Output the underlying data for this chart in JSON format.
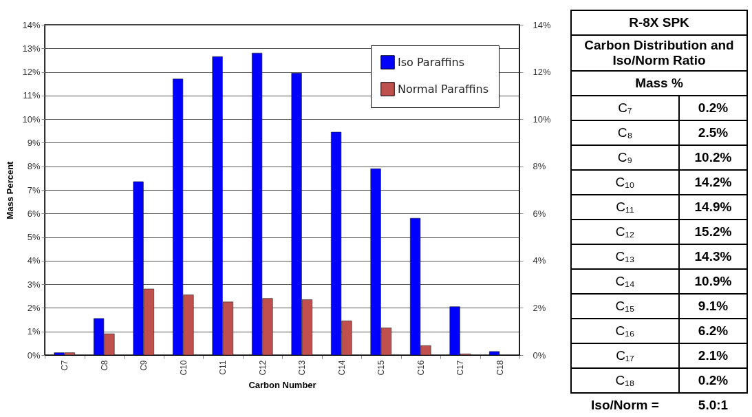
{
  "chart_data": [
    {
      "type": "bar",
      "xlabel": "Carbon Number",
      "ylabel": "Mass Percent",
      "categories": [
        "C7",
        "C8",
        "C9",
        "C10",
        "C11",
        "C12",
        "C13",
        "C14",
        "C15",
        "C16",
        "C17",
        "C18"
      ],
      "series": [
        {
          "name": "Iso Paraffins",
          "color": "#0000ff",
          "values": [
            0.1,
            1.55,
            7.35,
            11.7,
            12.65,
            12.8,
            11.95,
            9.45,
            7.9,
            5.8,
            2.05,
            0.15
          ]
        },
        {
          "name": "Normal Paraffins",
          "color": "#c0504d",
          "values": [
            0.1,
            0.9,
            2.8,
            2.55,
            2.25,
            2.4,
            2.35,
            1.45,
            1.15,
            0.4,
            0.05,
            null
          ]
        }
      ],
      "ylim": [
        0,
        14
      ],
      "yticks": [
        {
          "value": 0,
          "label": "0%"
        },
        {
          "value": 1,
          "label": "1%"
        },
        {
          "value": 2,
          "label": "2%"
        },
        {
          "value": 3,
          "label": "3%"
        },
        {
          "value": 4,
          "label": "4%"
        },
        {
          "value": 5,
          "label": "5%"
        },
        {
          "value": 6,
          "label": "6%"
        },
        {
          "value": 7,
          "label": "7%"
        },
        {
          "value": 8,
          "label": "8%"
        },
        {
          "value": 9,
          "label": "9%"
        },
        {
          "value": 10,
          "label": "10%"
        },
        {
          "value": 11,
          "label": "11%"
        },
        {
          "value": 12,
          "label": "12%"
        },
        {
          "value": 13,
          "label": "13%"
        },
        {
          "value": 14,
          "label": "14%"
        }
      ],
      "y2lim": [
        0,
        14
      ],
      "y2ticks": [
        {
          "value": 0,
          "label": "0%"
        },
        {
          "value": 2,
          "label": "2%"
        },
        {
          "value": 4,
          "label": "4%"
        },
        {
          "value": 6,
          "label": "6%"
        },
        {
          "value": 8,
          "label": "8%"
        },
        {
          "value": 10,
          "label": "10%"
        },
        {
          "value": 12,
          "label": "12%"
        },
        {
          "value": 14,
          "label": "14%"
        }
      ],
      "grid": "y",
      "legend": "top right"
    },
    {
      "type": "other",
      "title": "R-8X SPK",
      "subtitle": "Carbon Distribution and Iso/Norm Ratio",
      "annotations": [
        "Mass %",
        "C₇",
        "0.2%",
        "C₈",
        "2.5%",
        "C₉",
        "10.2%",
        "C₁₀",
        "14.2%",
        "C₁₁",
        "14.9%",
        "C₁₂",
        "15.2%",
        "C₁₃",
        "14.3%",
        "C₁₄",
        "10.9%",
        "C₁₅",
        "9.1%",
        "C₁₆",
        "6.2%",
        "C₁₇",
        "2.1%",
        "C₁₈",
        "0.2%",
        "Iso/Norm =",
        "5.0:1"
      ]
    }
  ]
}
